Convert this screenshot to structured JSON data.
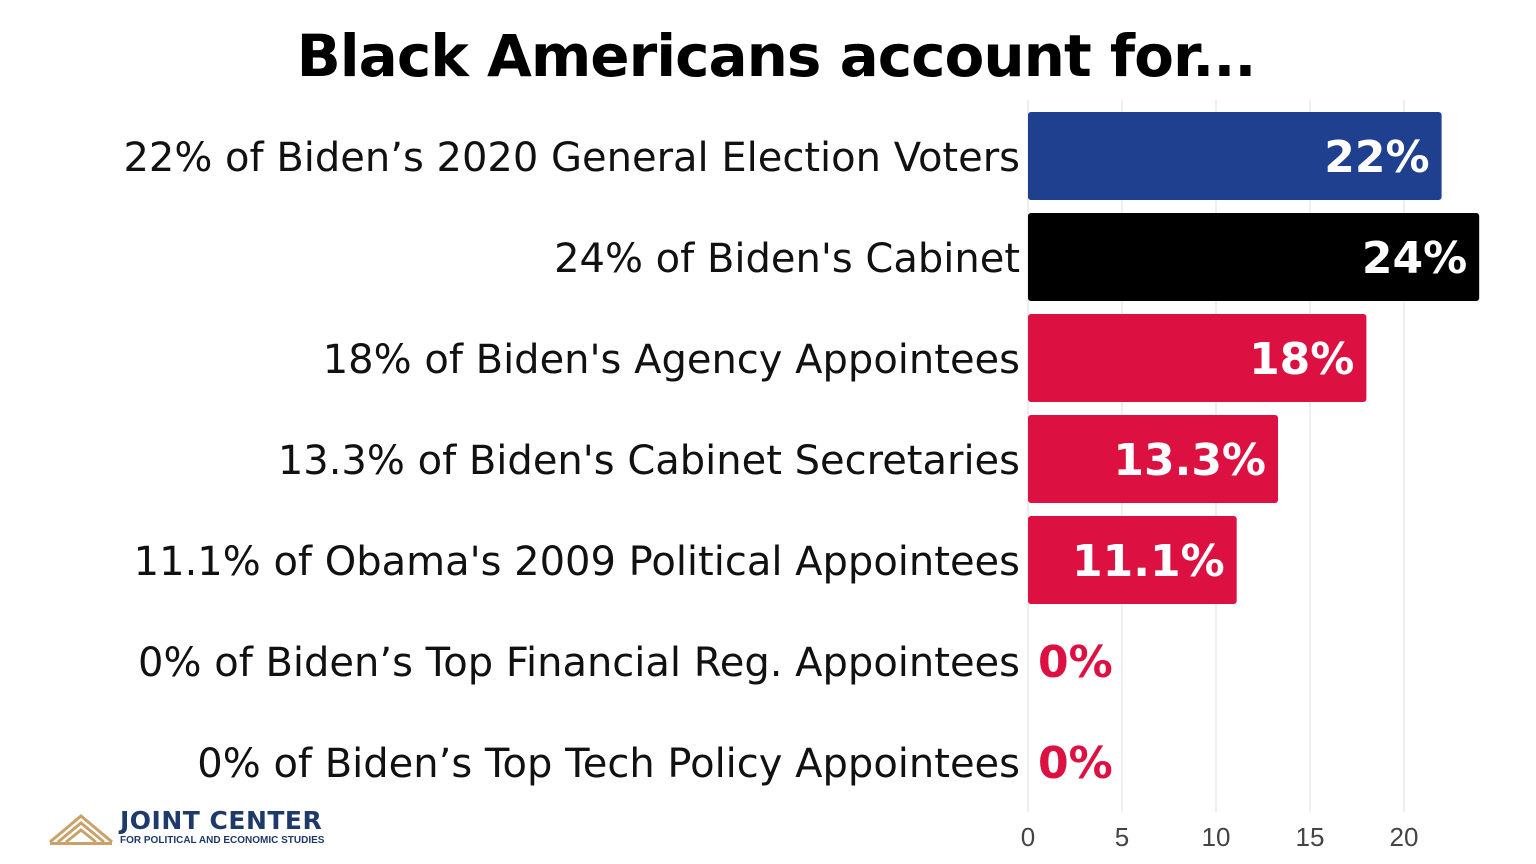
{
  "chart_data": {
    "type": "bar",
    "orientation": "horizontal",
    "title": "Black Americans account for...",
    "categories": [
      "22% of Biden’s 2020 General Election Voters",
      "24% of Biden's Cabinet",
      "18% of Biden's Agency Appointees",
      "13.3% of Biden's Cabinet Secretaries",
      "11.1% of Obama's 2009 Political Appointees",
      "0% of Biden’s Top Financial Reg. Appointees",
      "0% of Biden’s Top Tech Policy Appointees"
    ],
    "values": [
      22,
      24,
      18,
      13.3,
      11.1,
      0,
      0
    ],
    "data_labels": [
      "22%",
      "24%",
      "18%",
      "13.3%",
      "11.1%",
      "0%",
      "0%"
    ],
    "bar_colors": [
      "#1f3f8f",
      "#000000",
      "#dc1041",
      "#dc1041",
      "#dc1041",
      "#dc1041",
      "#dc1041"
    ],
    "xlim": [
      0,
      25
    ],
    "x_ticks": [
      0,
      5,
      10,
      15,
      20
    ],
    "x_tick_labels": [
      "0",
      "5",
      "10",
      "15",
      "20"
    ],
    "grid": true,
    "xlabel": "",
    "ylabel": ""
  },
  "logo": {
    "name": "JOINT CENTER",
    "subtitle": "FOR POLITICAL AND ECONOMIC STUDIES",
    "color": "#1d3a6b",
    "accent": "#c8a26a"
  }
}
